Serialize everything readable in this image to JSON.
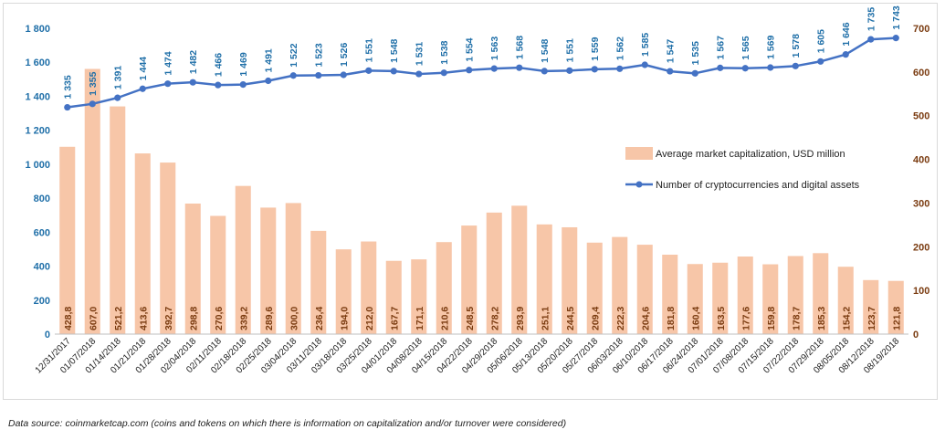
{
  "source_note": "Data source: coinmarketcap.com (coins and tokens on which there is information on capitalization and/or turnover were considered)",
  "colors": {
    "bar": "#f7c6a8",
    "line": "#4472c4",
    "left_axis": "#1f6fa8",
    "right_axis": "#7a3b10"
  },
  "chart_data": {
    "type": "bar",
    "title": "",
    "legend_position": "right",
    "grid": false,
    "categories": [
      "12/31/2017",
      "01/07/2018",
      "01/14/2018",
      "01/21/2018",
      "01/28/2018",
      "02/04/2018",
      "02/11/2018",
      "02/18/2018",
      "02/25/2018",
      "03/04/2018",
      "03/11/2018",
      "03/18/2018",
      "03/25/2018",
      "04/01/2018",
      "04/08/2018",
      "04/15/2018",
      "04/22/2018",
      "04/29/2018",
      "05/06/2018",
      "05/13/2018",
      "05/20/2018",
      "05/27/2018",
      "06/03/2018",
      "06/10/2018",
      "06/17/2018",
      "06/24/2018",
      "07/01/2018",
      "07/08/2018",
      "07/15/2018",
      "07/22/2018",
      "07/29/2018",
      "08/05/2018",
      "08/12/2018",
      "08/19/2018"
    ],
    "left_axis": {
      "ylim": [
        0,
        1800
      ],
      "ticks": [
        "0",
        "200",
        "400",
        "600",
        "800",
        "1 000",
        "1 200",
        "1 400",
        "1 600",
        "1 800"
      ]
    },
    "right_axis": {
      "ylim": [
        0,
        700
      ],
      "ticks": [
        "0",
        "100",
        "200",
        "300",
        "400",
        "500",
        "600",
        "700"
      ]
    },
    "series": [
      {
        "name": "Average market capitalization, USD million",
        "type": "bar",
        "axis": "right",
        "values": [
          428.8,
          607.0,
          521.2,
          413.6,
          392.7,
          298.8,
          270.6,
          339.2,
          289.6,
          300.0,
          236.4,
          194.0,
          212.0,
          167.7,
          171.1,
          210.6,
          248.5,
          278.2,
          293.9,
          251.1,
          244.5,
          209.4,
          222.3,
          204.6,
          181.8,
          160.4,
          163.5,
          177.6,
          159.8,
          178.7,
          185.3,
          154.2,
          123.7,
          121.8
        ],
        "labels": [
          "428,8",
          "607,0",
          "521,2",
          "413,6",
          "392,7",
          "298,8",
          "270,6",
          "339,2",
          "289,6",
          "300,0",
          "236,4",
          "194,0",
          "212,0",
          "167,7",
          "171,1",
          "210,6",
          "248,5",
          "278,2",
          "293,9",
          "251,1",
          "244,5",
          "209,4",
          "222,3",
          "204,6",
          "181,8",
          "160,4",
          "163,5",
          "177,6",
          "159,8",
          "178,7",
          "185,3",
          "154,2",
          "123,7",
          "121,8"
        ]
      },
      {
        "name": "Number of cryptocurrencies and digital assets",
        "type": "line",
        "axis": "left",
        "values": [
          1335,
          1355,
          1391,
          1444,
          1474,
          1482,
          1466,
          1469,
          1491,
          1522,
          1523,
          1526,
          1551,
          1548,
          1531,
          1538,
          1554,
          1563,
          1568,
          1548,
          1551,
          1559,
          1562,
          1585,
          1547,
          1535,
          1567,
          1565,
          1569,
          1578,
          1605,
          1646,
          1735,
          1743
        ],
        "labels": [
          "1 335",
          "1 355",
          "1 391",
          "1 444",
          "1 474",
          "1 482",
          "1 466",
          "1 469",
          "1 491",
          "1 522",
          "1 523",
          "1 526",
          "1 551",
          "1 548",
          "1 531",
          "1 538",
          "1 554",
          "1 563",
          "1 568",
          "1 548",
          "1 551",
          "1 559",
          "1 562",
          "1 585",
          "1 547",
          "1 535",
          "1 567",
          "1 565",
          "1 569",
          "1 578",
          "1 605",
          "1 646",
          "1 735",
          "1 743"
        ]
      }
    ]
  }
}
